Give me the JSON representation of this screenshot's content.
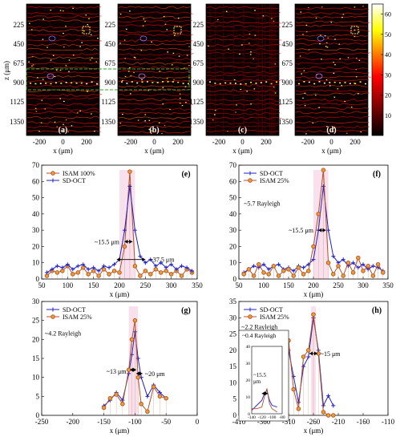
{
  "colorbar": {
    "ticks": [
      10,
      20,
      30,
      40,
      50,
      60
    ]
  },
  "images": {
    "ylabel": "z (μm)",
    "xlabel": "x (μm)",
    "zticks": [
      "225",
      "450",
      "675",
      "900",
      "1125",
      "1350"
    ],
    "xticks": [
      "-200",
      "0",
      "200"
    ],
    "panels": [
      {
        "label": "(a)"
      },
      {
        "label": "(b)"
      },
      {
        "label": "(c)"
      },
      {
        "label": "(d)"
      }
    ]
  },
  "chart_data": [
    {
      "panel": "(e)",
      "type": "line",
      "xlabel": "x (μm)",
      "xlim": [
        50,
        350
      ],
      "ylim": [
        0,
        70
      ],
      "xticks": [
        50,
        100,
        150,
        200,
        250,
        300,
        350
      ],
      "yticks": [
        0,
        10,
        20,
        30,
        40,
        50,
        60,
        70
      ],
      "legend_position": "top-left",
      "annotations": [
        "~15.5 μm",
        "~37.5 μm"
      ],
      "series": [
        {
          "name": "ISAM 100%",
          "color": "#b5502a",
          "marker": "circle",
          "x": [
            60,
            70,
            80,
            90,
            100,
            110,
            120,
            130,
            140,
            150,
            160,
            170,
            180,
            190,
            200,
            210,
            220,
            230,
            240,
            250,
            260,
            270,
            280,
            290,
            300,
            310,
            320,
            330,
            340
          ],
          "y": [
            2,
            5,
            4,
            5,
            8,
            3,
            4,
            7,
            3,
            5,
            2,
            6,
            3,
            5,
            4,
            20,
            66,
            8,
            2,
            5,
            3,
            6,
            4,
            5,
            3,
            5,
            2,
            6,
            4
          ]
        },
        {
          "name": "SD-OCT",
          "color": "#2020c8",
          "marker": "plus",
          "x": [
            60,
            70,
            80,
            90,
            100,
            110,
            120,
            130,
            140,
            150,
            160,
            170,
            180,
            190,
            200,
            210,
            220,
            230,
            240,
            250,
            260,
            270,
            280,
            290,
            300,
            310,
            320,
            330,
            340
          ],
          "y": [
            4,
            6,
            8,
            7,
            9,
            6,
            8,
            9,
            6,
            7,
            5,
            8,
            7,
            9,
            12,
            30,
            57,
            30,
            14,
            10,
            12,
            8,
            10,
            7,
            9,
            6,
            8,
            7,
            5
          ]
        }
      ]
    },
    {
      "panel": "(f)",
      "type": "line",
      "xlabel": "x (μm)",
      "xlim": [
        50,
        350
      ],
      "ylim": [
        0,
        70
      ],
      "xticks": [
        50,
        100,
        150,
        200,
        250,
        300,
        350
      ],
      "yticks": [
        0,
        10,
        20,
        30,
        40,
        50,
        60,
        70
      ],
      "legend_position": "top-left",
      "annotations": [
        "~5.7 Rayleigh",
        "~15.5 μm"
      ],
      "series": [
        {
          "name": "SD-OCT",
          "color": "#2020c8",
          "marker": "plus",
          "x": [
            60,
            70,
            80,
            90,
            100,
            110,
            120,
            130,
            140,
            150,
            160,
            170,
            180,
            190,
            200,
            210,
            220,
            230,
            240,
            250,
            260,
            270,
            280,
            290,
            300,
            310,
            320,
            330,
            340
          ],
          "y": [
            4,
            6,
            8,
            7,
            9,
            6,
            8,
            9,
            6,
            7,
            5,
            8,
            7,
            9,
            12,
            30,
            57,
            30,
            14,
            10,
            12,
            8,
            10,
            7,
            9,
            6,
            8,
            7,
            5
          ]
        },
        {
          "name": "ISAM 25%",
          "color": "#b5502a",
          "marker": "circle",
          "x": [
            60,
            70,
            80,
            90,
            100,
            110,
            120,
            130,
            140,
            150,
            160,
            170,
            180,
            190,
            200,
            210,
            220,
            230,
            240,
            250,
            260,
            270,
            280,
            290,
            300,
            310,
            320,
            330,
            340
          ],
          "y": [
            3,
            6,
            2,
            9,
            4,
            3,
            8,
            2,
            5,
            6,
            2,
            7,
            3,
            5,
            20,
            40,
            67,
            10,
            3,
            8,
            2,
            10,
            4,
            13,
            5,
            8,
            2,
            9,
            4
          ]
        }
      ]
    },
    {
      "panel": "(g)",
      "type": "line",
      "xlabel": "x (μm)",
      "xlim": [
        -250,
        0
      ],
      "ylim": [
        0,
        30
      ],
      "xticks": [
        -250,
        -200,
        -150,
        -100,
        -50,
        0
      ],
      "yticks": [
        0,
        5,
        10,
        15,
        20,
        25,
        30
      ],
      "legend_position": "top-left",
      "annotations": [
        "~4.2 Rayleigh",
        "~13 μm",
        "~20 μm"
      ],
      "series": [
        {
          "name": "SD-OCT",
          "color": "#2020c8",
          "marker": "plus",
          "x": [
            -150,
            -140,
            -130,
            -120,
            -110,
            -105,
            -100,
            -95,
            -90,
            -80,
            -70,
            -60,
            -50
          ],
          "y": [
            2.5,
            4,
            6,
            4,
            11,
            16,
            22,
            15,
            10,
            5,
            8,
            6,
            4.5
          ]
        },
        {
          "name": "ISAM 25%",
          "color": "#b5502a",
          "marker": "circle",
          "x": [
            -150,
            -140,
            -130,
            -120,
            -110,
            -105,
            -100,
            -95,
            -90,
            -80,
            -70,
            -60,
            -50
          ],
          "y": [
            2,
            4.5,
            5.5,
            3,
            12,
            20,
            25,
            10,
            3,
            1,
            7.5,
            5,
            4.5
          ]
        }
      ]
    },
    {
      "panel": "(h)",
      "type": "line",
      "xlabel": "x (μm)",
      "xlim": [
        -410,
        -110
      ],
      "ylim": [
        0,
        35
      ],
      "xticks": [
        -410,
        -360,
        -310,
        -260,
        -210,
        -160,
        -110
      ],
      "yticks": [
        0,
        5,
        10,
        15,
        20,
        25,
        30,
        35
      ],
      "legend_position": "top-left",
      "annotations": [
        "~2.2 Rayleigh",
        "~15 μm"
      ],
      "series": [
        {
          "name": "SD-OCT",
          "color": "#2020c8",
          "marker": "plus",
          "x": [
            -310,
            -300,
            -290,
            -280,
            -270,
            -260,
            -250,
            -240,
            -230,
            -220
          ],
          "y": [
            20,
            12,
            4,
            15,
            18,
            30,
            20,
            3,
            6,
            3
          ]
        },
        {
          "name": "ISAM 25%",
          "color": "#b5502a",
          "marker": "circle",
          "x": [
            -310,
            -300,
            -290,
            -280,
            -270,
            -260,
            -250,
            -240,
            -230,
            -220
          ],
          "y": [
            23,
            8,
            2,
            18,
            20,
            31,
            19,
            1,
            0,
            0
          ]
        }
      ],
      "inset": {
        "annotations": [
          "~0.4 Rayleigh",
          "~15.5",
          "μm"
        ],
        "xlim": [
          -140,
          -80
        ],
        "ylim": [
          0,
          40
        ],
        "xticks": [
          -140,
          -120,
          -100,
          -80
        ],
        "yticks": [
          0,
          10,
          20,
          30,
          40
        ],
        "series": [
          {
            "name": "SD-OCT",
            "color": "#2020c8",
            "x": [
              -140,
              -130,
              -120,
              -115,
              -110,
              -105,
              -100,
              -90
            ],
            "y": [
              2,
              5,
              8,
              12,
              14,
              8,
              5,
              4
            ]
          },
          {
            "name": "ISAM 25%",
            "color": "#b5502a",
            "x": [
              -140,
              -130,
              -120,
              -115,
              -110,
              -105,
              -100,
              -90
            ],
            "y": [
              3,
              3,
              4,
              10,
              15,
              6,
              3,
              1
            ]
          }
        ]
      }
    }
  ]
}
